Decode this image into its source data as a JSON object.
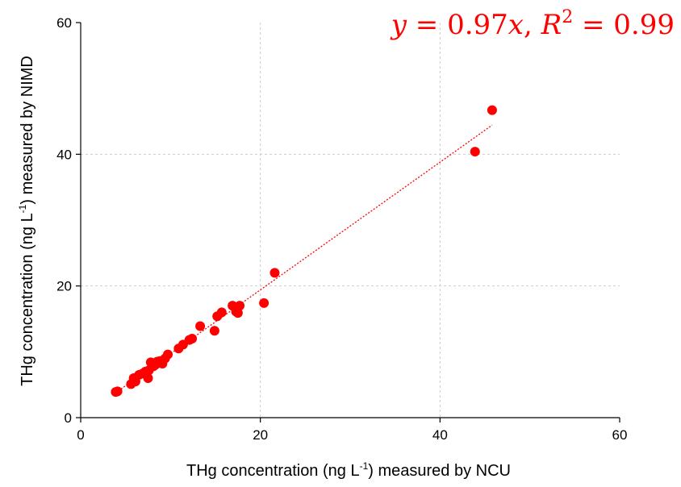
{
  "chart_data": {
    "type": "scatter",
    "xlabel": "THg concentration (ng L",
    "xlabel_sup": "-1",
    "xlabel_after": ") measured by NCU",
    "ylabel": "THg concentration (ng L",
    "ylabel_sup": "-1",
    "ylabel_after": ") measured by NIMD",
    "xlim": [
      0,
      60
    ],
    "ylim": [
      0,
      60
    ],
    "xticks": [
      0,
      20,
      40,
      60
    ],
    "yticks": [
      0,
      20,
      40,
      60
    ],
    "grid": true,
    "series": [
      {
        "color": "#ff0000",
        "points": [
          [
            3.9,
            3.9
          ],
          [
            4.1,
            4.0
          ],
          [
            5.6,
            5.1
          ],
          [
            5.9,
            6.0
          ],
          [
            6.1,
            5.5
          ],
          [
            6.5,
            6.5
          ],
          [
            6.9,
            6.7
          ],
          [
            7.2,
            7.0
          ],
          [
            7.5,
            6.0
          ],
          [
            7.6,
            7.2
          ],
          [
            7.8,
            8.4
          ],
          [
            8.1,
            7.8
          ],
          [
            8.3,
            8.0
          ],
          [
            8.5,
            8.5
          ],
          [
            8.8,
            8.6
          ],
          [
            9.1,
            8.2
          ],
          [
            9.4,
            9.0
          ],
          [
            9.7,
            9.6
          ],
          [
            10.9,
            10.5
          ],
          [
            11.4,
            11.1
          ],
          [
            12.1,
            11.8
          ],
          [
            12.4,
            12.0
          ],
          [
            13.3,
            13.9
          ],
          [
            14.9,
            13.2
          ],
          [
            15.2,
            15.4
          ],
          [
            15.7,
            16.0
          ],
          [
            16.9,
            17.0
          ],
          [
            17.3,
            16.1
          ],
          [
            17.5,
            15.9
          ],
          [
            17.7,
            17.0
          ],
          [
            20.4,
            17.4
          ],
          [
            21.6,
            22.0
          ],
          [
            43.9,
            40.4
          ],
          [
            45.8,
            46.7
          ]
        ]
      }
    ],
    "fit_line": {
      "slope": 0.97,
      "x_range": [
        3.9,
        45.8
      ],
      "color": "#ff0000",
      "style": "dotted"
    },
    "annotation": {
      "y": "y",
      "eq": " = ",
      "coef": "0.97",
      "x": "x",
      "comma": ", ",
      "R": "R",
      "R_sup": "2",
      "eq2": " = ",
      "r2": "0.99"
    }
  }
}
